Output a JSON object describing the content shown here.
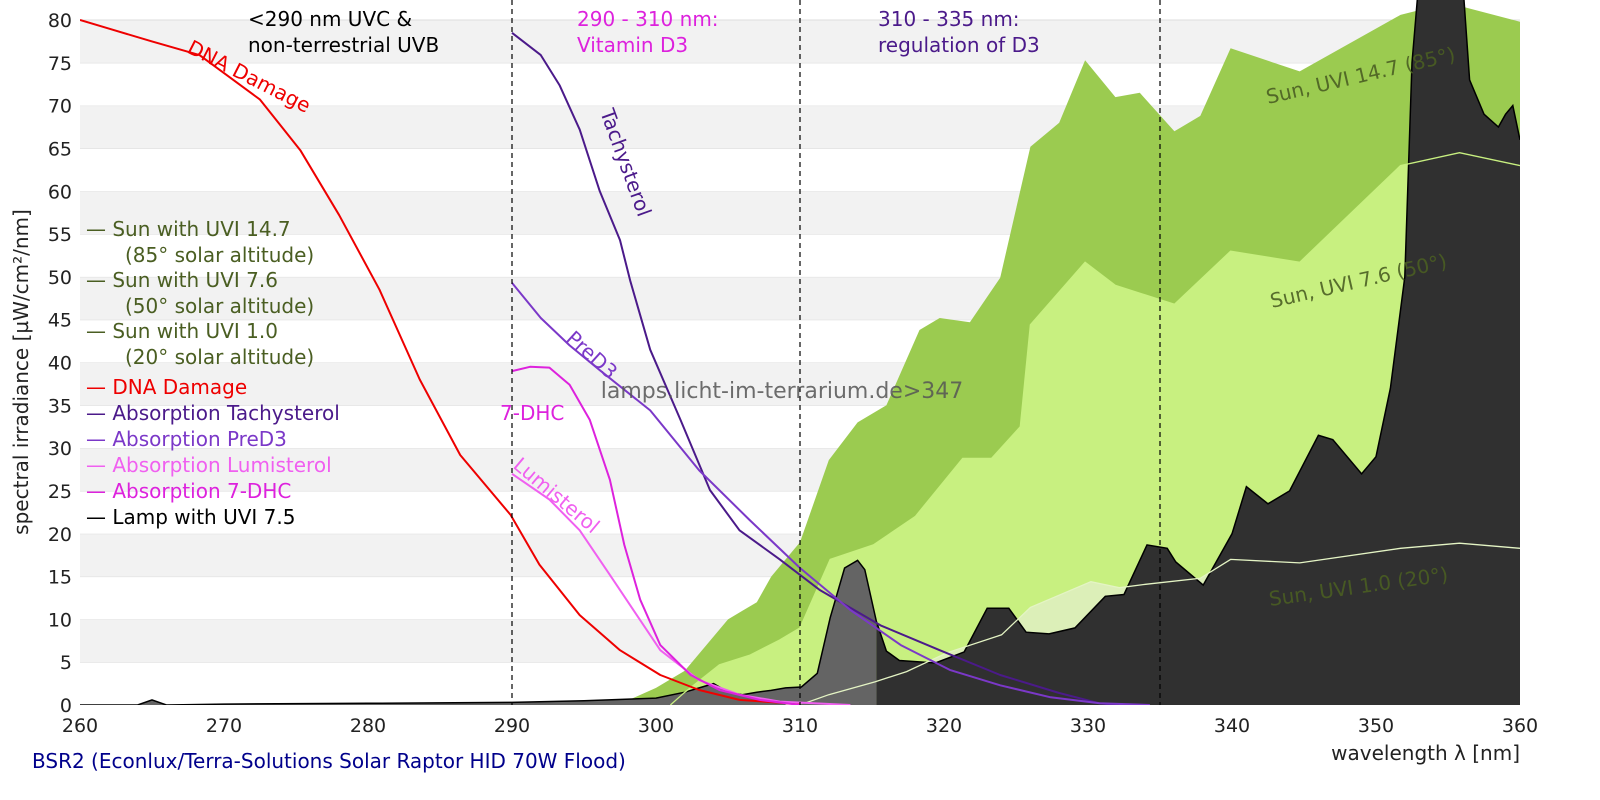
{
  "chart_data": {
    "type": "area",
    "footer_title": "BSR2 (Econlux/Terra-Solutions Solar Raptor HID 70W Flood)",
    "xlabel": "wavelength λ [nm]",
    "ylabel": "spectral irradiance [µW/cm²/nm]",
    "xlim": [
      260,
      360
    ],
    "ylim": [
      0,
      80
    ],
    "xticks": [
      260,
      270,
      280,
      290,
      300,
      310,
      320,
      330,
      340,
      350,
      360
    ],
    "yticks": [
      0,
      5,
      10,
      15,
      20,
      25,
      30,
      35,
      40,
      45,
      50,
      55,
      60,
      65,
      70,
      75,
      80
    ],
    "grid": "horizontal alternating bands",
    "watermark": "lamps.licht-im-terrarium.de>347",
    "regions": [
      {
        "at": 290,
        "label_lines": [
          "<290 nm UVC &",
          "non-terrestrial UVB"
        ],
        "color": "#000000"
      },
      {
        "at": 310,
        "label_lines": [
          "290 - 310 nm:",
          "Vitamin D3"
        ],
        "color": "#dd22dd"
      },
      {
        "at": 335,
        "label_lines": [
          "310 - 335 nm:",
          "regulation of D3"
        ],
        "color": "#4b1a8a"
      }
    ],
    "legend": [
      {
        "lines": [
          "— Sun with UVI 14.7",
          "(85° solar altitude)"
        ],
        "color": "#4a5e22"
      },
      {
        "lines": [
          "— Sun with UVI 7.6",
          "(50° solar altitude)"
        ],
        "color": "#4a5e22"
      },
      {
        "lines": [
          "— Sun with UVI 1.0",
          "(20° solar altitude)"
        ],
        "color": "#4a5e22"
      },
      {
        "lines": [
          "— DNA Damage"
        ],
        "color": "#ee0000"
      },
      {
        "lines": [
          "— Absorption Tachysterol"
        ],
        "color": "#4b1a8a"
      },
      {
        "lines": [
          "— Absorption PreD3"
        ],
        "color": "#7b38c8"
      },
      {
        "lines": [
          "— Absorption Lumisterol"
        ],
        "color": "#f060f0"
      },
      {
        "lines": [
          "— Absorption 7-DHC"
        ],
        "color": "#dd22dd"
      },
      {
        "lines": [
          "— Lamp with UVI 7.5"
        ],
        "color": "#000000"
      }
    ],
    "areas": [
      {
        "name": "Sun, UVI 14.7 (85°)",
        "color": "#9bcb50",
        "label_color": "#4a5e22",
        "x": [
          297,
          298,
          300,
          302,
          304,
          305,
          306,
          307,
          308,
          309,
          310,
          312,
          314,
          316,
          318.3,
          319.7,
          321.8,
          323.9,
          326,
          328,
          329.8,
          331.9,
          333.6,
          336,
          337.8,
          339.9,
          344.7,
          351.7,
          355,
          360
        ],
        "y": [
          0,
          0.5,
          2,
          4,
          8,
          10,
          11,
          12,
          15,
          17,
          19,
          28.6,
          33,
          35,
          43.8,
          45.2,
          44.7,
          49.9,
          65.2,
          68,
          75.3,
          71,
          71.5,
          67,
          68.8,
          76.7,
          74,
          80.6,
          82,
          79.8
        ]
      },
      {
        "name": "Sun, UVI 7.6 (50°)",
        "color": "#c8f080",
        "label_color": "#4a5e22",
        "x": [
          301,
          302,
          304.4,
          306.5,
          308.6,
          310,
          312.1,
          315.1,
          318,
          321.3,
          323.3,
          325.3,
          326,
          329.8,
          331.9,
          336,
          339.9,
          344.7,
          351.7,
          355.8,
          360
        ],
        "y": [
          0,
          1.5,
          4.7,
          5.8,
          7.6,
          9,
          17,
          18.7,
          22,
          28.8,
          28.8,
          32.5,
          44.4,
          51.7,
          49,
          46.8,
          53,
          51.7,
          63,
          64.5,
          63
        ]
      },
      {
        "name": "Sun, UVI 1.0 (20°)",
        "color": "#dcefb8",
        "label_color": "#4a5e22",
        "x": [
          309,
          310.5,
          312,
          315.2,
          317.4,
          320.2,
          324,
          326,
          330.2,
          332.2,
          334,
          337.8,
          339.9,
          344.7,
          351.7,
          355.8,
          360
        ],
        "y": [
          0,
          0.3,
          1.2,
          2.7,
          3.9,
          6.1,
          8.2,
          11.4,
          14.4,
          13.7,
          14.1,
          14.8,
          17,
          16.6,
          18.3,
          18.9,
          18.3
        ]
      },
      {
        "name": "Lamp with UVI 7.5",
        "color": "#303030",
        "uvb_color": "#646464",
        "split_at": 315.3,
        "x": [
          260,
          264,
          265,
          266,
          270,
          280,
          290,
          295,
          300,
          302,
          303,
          304,
          305,
          306,
          307,
          308,
          309,
          310.1,
          311.2,
          312.1,
          313.1,
          314,
          314.5,
          315.3,
          316,
          316.9,
          319.4,
          321.4,
          323,
          324.5,
          325.7,
          327.3,
          329.1,
          331.2,
          332.5,
          334.1,
          335.5,
          336.1,
          338,
          340,
          341,
          342.5,
          344,
          346,
          347,
          349,
          350,
          351,
          352,
          352.5,
          353,
          356,
          356.5,
          357.5,
          358.5,
          359,
          359.5,
          360
        ],
        "y": [
          0,
          0,
          0.6,
          0,
          0.1,
          0.2,
          0.3,
          0.5,
          0.8,
          1.5,
          2,
          2.5,
          1.5,
          1.2,
          1.5,
          1.7,
          2,
          2.1,
          3.7,
          10.2,
          16,
          16.9,
          15.8,
          9.8,
          6.3,
          5.2,
          4.9,
          6.2,
          11.3,
          11.3,
          8.5,
          8.3,
          9,
          12.7,
          12.9,
          18.7,
          18.3,
          16.7,
          14,
          20,
          25.5,
          23.5,
          25,
          31.5,
          31,
          27,
          29,
          37,
          50,
          75,
          85,
          85,
          73,
          69,
          67.5,
          69,
          70,
          66
        ]
      }
    ],
    "series": [
      {
        "name": "DNA Damage",
        "color": "#ee0000",
        "x": [
          260,
          262,
          265,
          268.3,
          272.5,
          275.3,
          278,
          280.8,
          283.6,
          286.4,
          289.9,
          291.9,
          294.7,
          297.5,
          300.3,
          303,
          305.8,
          310
        ],
        "y": [
          80,
          79,
          77.5,
          75.9,
          70.7,
          64.8,
          57.2,
          48.5,
          38,
          29.2,
          22.2,
          16.4,
          10.5,
          6.4,
          3.5,
          1.75,
          0.6,
          0.1
        ]
      },
      {
        "name": "Tachysterol",
        "color": "#4b1a8a",
        "x": [
          290,
          292,
          293.3,
          294.7,
          296.1,
          297.5,
          298.2,
          299.6,
          301.7,
          303.75,
          305.8,
          308.6,
          311.4,
          315.6,
          319.7,
          323.9,
          328,
          330.8,
          332
        ],
        "y": [
          78.5,
          75.9,
          72.4,
          67.2,
          60,
          54.3,
          49.6,
          41.5,
          33.3,
          25.1,
          20.4,
          17,
          13.4,
          9.3,
          6.4,
          3.5,
          1.4,
          0.2,
          0
        ]
      },
      {
        "name": "PreD3",
        "color": "#7b38c8",
        "x": [
          290,
          292,
          294,
          296.1,
          299.6,
          303,
          306.5,
          310,
          313.5,
          317,
          320.4,
          323.9,
          327.4,
          330.8,
          334.3
        ],
        "y": [
          49.3,
          45.2,
          42,
          39.1,
          34.4,
          27.4,
          21.6,
          16,
          11.1,
          7,
          4.1,
          2.3,
          0.9,
          0.2,
          0
        ]
      },
      {
        "name": "Lumisterol",
        "color": "#f060f0",
        "x": [
          290,
          292.6,
          294.7,
          296.8,
          298.9,
          300.3,
          303,
          305.8,
          308.6,
          313.5
        ],
        "y": [
          27,
          24,
          20.4,
          15.2,
          9.9,
          6.4,
          2.9,
          1.2,
          0.4,
          0
        ]
      },
      {
        "name": "7-DHC",
        "color": "#dd22dd",
        "x": [
          290,
          291.25,
          292.6,
          294,
          295.4,
          296.8,
          297.8,
          298.9,
          300.3,
          302.4,
          304.4,
          307.2,
          310
        ],
        "y": [
          39,
          39.5,
          39.4,
          37.4,
          33.3,
          26.3,
          18.7,
          12.3,
          7,
          3.5,
          1.75,
          0.6,
          0
        ]
      }
    ],
    "curve_labels": {
      "dna": "DNA Damage",
      "tachysterol": "Tachysterol",
      "pred3": "PreD3",
      "dhc": "7-DHC",
      "lumisterol": "Lumisterol",
      "sun147": "Sun, UVI 14.7 (85°)",
      "sun76": "Sun, UVI 7.6 (50°)",
      "sun10": "Sun, UVI 1.0 (20°)"
    }
  }
}
